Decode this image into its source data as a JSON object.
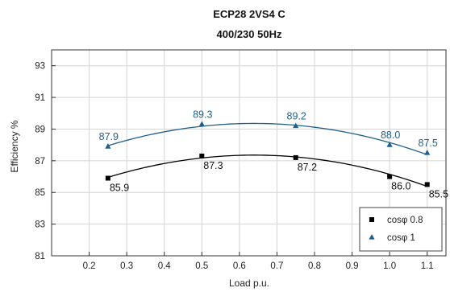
{
  "chart_data": {
    "type": "line",
    "title": "ECP28 2VS4 C",
    "subtitle": "400/230 50Hz",
    "xlabel": "Load p.u.",
    "ylabel": "Efficiency %",
    "xlim": [
      0.1,
      1.15
    ],
    "ylim": [
      81,
      94
    ],
    "xticks": [
      0.2,
      0.3,
      0.4,
      0.5,
      0.6,
      0.7,
      0.8,
      0.9,
      1.0,
      1.1
    ],
    "xtick_labels": [
      "0.2",
      "0.3",
      "0.4",
      "0.5",
      "0.6",
      "0.7",
      "0.8",
      "0.9",
      "1.0",
      "1.1"
    ],
    "yticks": [
      81,
      83,
      85,
      87,
      89,
      91,
      93
    ],
    "ytick_labels": [
      "81",
      "83",
      "85",
      "87",
      "89",
      "91",
      "93"
    ],
    "grid": true,
    "legend_position": "bottom-right",
    "series": [
      {
        "name": "cosφ 0.8",
        "marker": "square",
        "color": "#000000",
        "label_color": "#111111",
        "label_position": "below",
        "x": [
          0.25,
          0.5,
          0.75,
          1.0,
          1.1
        ],
        "y": [
          85.9,
          87.3,
          87.2,
          86.0,
          85.5
        ],
        "labels": [
          "85.9",
          "87.3",
          "87.2",
          "86.0",
          "85.5"
        ]
      },
      {
        "name": "cosφ 1",
        "marker": "triangle",
        "color": "#1f5f8b",
        "label_color": "#1f5f8b",
        "label_position": "above",
        "x": [
          0.25,
          0.5,
          0.75,
          1.0,
          1.1
        ],
        "y": [
          87.9,
          89.3,
          89.2,
          88.0,
          87.5
        ],
        "labels": [
          "87.9",
          "89.3",
          "89.2",
          "88.0",
          "87.5"
        ]
      }
    ]
  }
}
